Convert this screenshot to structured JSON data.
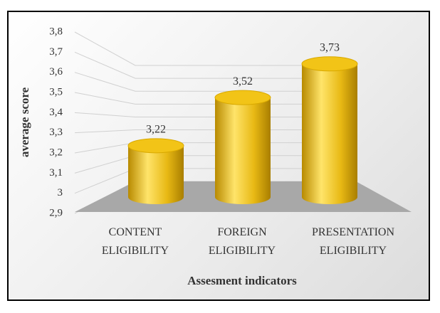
{
  "chart_data": {
    "type": "cylinder",
    "x_label": "Assesment indicators",
    "y_label": "average score",
    "categories": [
      "CONTENT ELIGIBILITY",
      "FOREIGN ELIGIBILITY",
      "PRESENTATION ELIGIBILITY"
    ],
    "values": [
      3.22,
      3.52,
      3.73
    ],
    "value_labels": [
      "3,22",
      "3,52",
      "3,73"
    ],
    "color": "#f2c417",
    "ylim": [
      2.9,
      3.8
    ],
    "yticks": [
      {
        "value": 2.9,
        "label": "2,9"
      },
      3,
      {
        "value": 3.1,
        "label": "3,1"
      },
      {
        "value": 3.2,
        "label": "3,2"
      },
      {
        "value": 3.3,
        "label": "3,3"
      },
      {
        "value": 3.4,
        "label": "3,4"
      },
      {
        "value": 3.5,
        "label": "3,5"
      },
      {
        "value": 3.6,
        "label": "3,6"
      },
      {
        "value": 3.7,
        "label": "3,7"
      },
      {
        "value": 3.8,
        "label": "3,8"
      }
    ],
    "grid": true
  }
}
